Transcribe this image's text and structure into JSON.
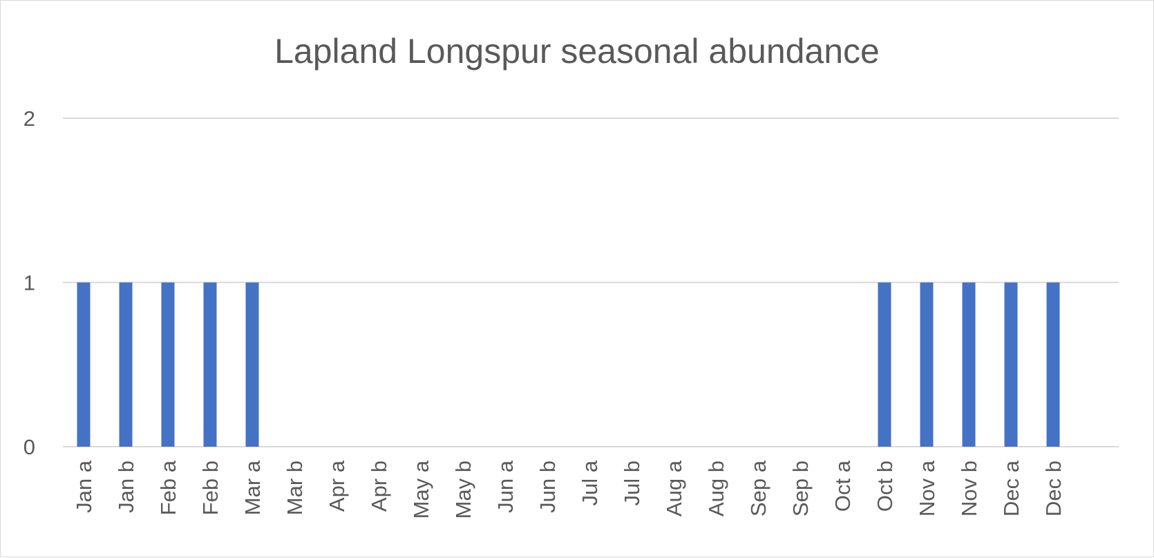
{
  "chart_data": {
    "type": "bar",
    "title": "Lapland Longspur seasonal abundance",
    "xlabel": "",
    "ylabel": "",
    "categories": [
      "Jan a",
      "Jan b",
      "Feb a",
      "Feb b",
      "Mar a",
      "Mar b",
      "Apr a",
      "Apr b",
      "May a",
      "May b",
      "Jun a",
      "Jun b",
      "Jul a",
      "Jul b",
      "Aug a",
      "Aug b",
      "Sep a",
      "Sep b",
      "Oct a",
      "Oct b",
      "Nov a",
      "Nov b",
      "Dec a",
      "Dec b"
    ],
    "values": [
      1,
      1,
      1,
      1,
      1,
      0,
      0,
      0,
      0,
      0,
      0,
      0,
      0,
      0,
      0,
      0,
      0,
      0,
      0,
      1,
      1,
      1,
      1,
      1
    ],
    "ylim": [
      0,
      2
    ],
    "yticks": [
      0,
      1,
      2
    ],
    "grid": true,
    "legend": "none",
    "colors": {
      "bar": "#4472C4",
      "grid": "#d9d9d9",
      "text": "#595959",
      "border": "#d9d9d9"
    }
  }
}
